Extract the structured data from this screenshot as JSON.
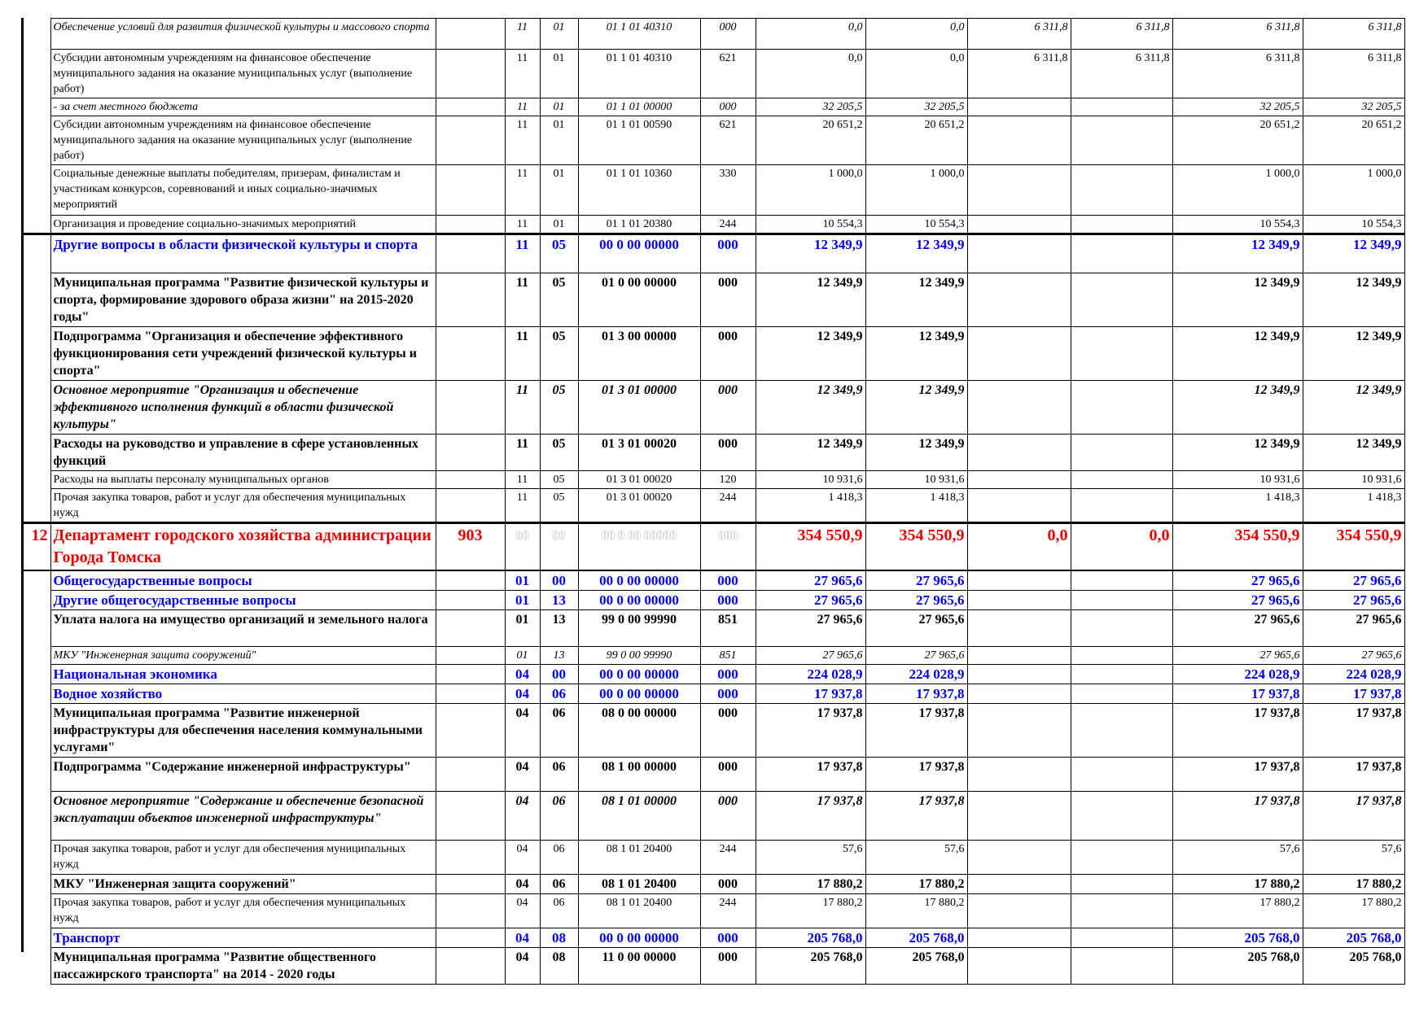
{
  "rows": [
    {
      "style": "it",
      "h": 38,
      "no": "",
      "name": "Обеспечение условий для развития физической культуры и массового спорта",
      "grbs": "",
      "rz": "11",
      "pr": "01",
      "csr": "01 1 01 40310",
      "vr": "000",
      "v": [
        "0,0",
        "0,0",
        "6 311,8",
        "6 311,8",
        "6 311,8",
        "6 311,8"
      ]
    },
    {
      "style": "",
      "h": 60,
      "no": "",
      "name": "  Субсидии автономным учреждениям на финансовое обеспечение муниципального задания на оказание муниципальных услуг (выполнение работ)",
      "grbs": "",
      "rz": "11",
      "pr": "01",
      "csr": "01 1 01 40310",
      "vr": "621",
      "v": [
        "0,0",
        "0,0",
        "6 311,8",
        "6 311,8",
        "6 311,8",
        "6 311,8"
      ]
    },
    {
      "style": "it",
      "h": 20,
      "no": "",
      "name": " - за счет местного бюджета",
      "grbs": "",
      "rz": "11",
      "pr": "01",
      "csr": "01 1 01 00000",
      "vr": "000",
      "v": [
        "32 205,5",
        "32 205,5",
        "",
        "",
        "32 205,5",
        "32 205,5"
      ]
    },
    {
      "style": "",
      "h": 60,
      "no": "",
      "name": "  Субсидии автономным учреждениям на финансовое обеспечение муниципального задания на оказание муниципальных услуг (выполнение работ)",
      "grbs": "",
      "rz": "11",
      "pr": "01",
      "csr": "01 1 01 00590",
      "vr": "621",
      "v": [
        "20 651,2",
        "20 651,2",
        "",
        "",
        "20 651,2",
        "20 651,2"
      ]
    },
    {
      "style": "",
      "h": 62,
      "no": "",
      "name": " Социальные денежные выплаты победителям, призерам, финалистам и участникам конкурсов, соревнований и иных социально-значимых мероприятий",
      "grbs": "",
      "rz": "11",
      "pr": "01",
      "csr": "01 1 01 10360",
      "vr": "330",
      "v": [
        "1 000,0",
        "1 000,0",
        "",
        "",
        "1 000,0",
        "1 000,0"
      ]
    },
    {
      "style": "thick",
      "h": 20,
      "no": "",
      "name": " Организация и проведение социально-значимых мероприятий",
      "grbs": "",
      "rz": "11",
      "pr": "01",
      "csr": "01 1 01 20380",
      "vr": "244",
      "v": [
        "10 554,3",
        "10 554,3",
        "",
        "",
        "10 554,3",
        "10 554,3"
      ]
    },
    {
      "style": "sec",
      "h": 48,
      "no": "",
      "name": "Другие вопросы в области физической культуры и спорта",
      "grbs": "",
      "rz": "11",
      "pr": "05",
      "csr": "00 0 00 00000",
      "vr": "000",
      "v": [
        "12 349,9",
        "12 349,9",
        "",
        "",
        "12 349,9",
        "12 349,9"
      ]
    },
    {
      "style": "b",
      "h": 66,
      "no": "",
      "name": "Муниципальная программа \"Развитие физической культуры и спорта, формирование здорового образа жизни\" на 2015-2020 годы\"",
      "grbs": "",
      "rz": "11",
      "pr": "05",
      "csr": "01 0 00 00000",
      "vr": "000",
      "v": [
        "12 349,9",
        "12 349,9",
        "",
        "",
        "12 349,9",
        "12 349,9"
      ]
    },
    {
      "style": "b",
      "h": 64,
      "no": "",
      "name": "Подпрограмма \"Организация и обеспечение эффективного функционирования сети учреждений физической культуры и спорта\"",
      "grbs": "",
      "rz": "11",
      "pr": "05",
      "csr": "01 3 00 00000",
      "vr": "000",
      "v": [
        "12 349,9",
        "12 349,9",
        "",
        "",
        "12 349,9",
        "12 349,9"
      ]
    },
    {
      "style": "it b",
      "h": 60,
      "no": "",
      "name": " Основное мероприятие \"Организация и обеспечение эффективного исполнения функций в области физической культуры\"",
      "grbs": "",
      "rz": "11",
      "pr": "05",
      "csr": "01 3 01 00000",
      "vr": "000",
      "v": [
        "12 349,9",
        "12 349,9",
        "",
        "",
        "12 349,9",
        "12 349,9"
      ]
    },
    {
      "style": "b",
      "h": 40,
      "no": "",
      "name": "Расходы на руководство и управление в сфере установленных функций",
      "grbs": "",
      "rz": "11",
      "pr": "05",
      "csr": "01 3 01 00020",
      "vr": "000",
      "v": [
        "12 349,9",
        "12 349,9",
        "",
        "",
        "12 349,9",
        "12 349,9"
      ]
    },
    {
      "style": "",
      "h": 20,
      "no": "",
      "name": "Расходы на выплаты персоналу муниципальных органов",
      "grbs": "",
      "rz": "11",
      "pr": "05",
      "csr": "01 3 01 00020",
      "vr": "120",
      "v": [
        "10 931,6",
        "10 931,6",
        "",
        "",
        "10 931,6",
        "10 931,6"
      ]
    },
    {
      "style": "",
      "h": 42,
      "no": "",
      "name": "   Прочая закупка товаров, работ и услуг для обеспечения муниципальных нужд",
      "grbs": "",
      "rz": "11",
      "pr": "05",
      "csr": "01 3 01 00020",
      "vr": "244",
      "v": [
        "1 418,3",
        "1 418,3",
        "",
        "",
        "1 418,3",
        "1 418,3"
      ]
    },
    {
      "style": "dept",
      "h": 52,
      "no": "12",
      "name": "Департамент городского хозяйства администрации Города Томска",
      "grbs": "903",
      "rz": "00",
      "pr": "00",
      "csr": "00 0 00 00000",
      "vr": "000",
      "v": [
        "354 550,9",
        "354 550,9",
        "0,0",
        "0,0",
        "354 550,9",
        "354 550,9"
      ]
    },
    {
      "style": "sec",
      "h": 23,
      "no": "",
      "name": "Общегосударственные вопросы",
      "grbs": "",
      "rz": "01",
      "pr": "00",
      "csr": "00 0 00 00000",
      "vr": "000",
      "v": [
        "27 965,6",
        "27 965,6",
        "",
        "",
        "27 965,6",
        "27 965,6"
      ]
    },
    {
      "style": "sec",
      "h": 22,
      "no": "",
      "name": "Другие общегосударственные вопросы",
      "grbs": "",
      "rz": "01",
      "pr": "13",
      "csr": "00 0 00 00000",
      "vr": "000",
      "v": [
        "27 965,6",
        "27 965,6",
        "",
        "",
        "27 965,6",
        "27 965,6"
      ]
    },
    {
      "style": "b",
      "h": 45,
      "no": "",
      "name": "Уплата налога на имущество организаций и земельного налога",
      "grbs": "",
      "rz": "01",
      "pr": "13",
      "csr": "99 0 00 99990",
      "vr": "851",
      "v": [
        "27 965,6",
        "27 965,6",
        "",
        "",
        "27 965,6",
        "27 965,6"
      ]
    },
    {
      "style": "it",
      "h": 22,
      "no": "",
      "name": "   МКУ \"Инженерная защита сооружений\"",
      "grbs": "",
      "rz": "01",
      "pr": "13",
      "csr": "99 0 00 99990",
      "vr": "851",
      "v": [
        "27 965,6",
        "27 965,6",
        "",
        "",
        "27 965,6",
        "27 965,6"
      ]
    },
    {
      "style": "sec",
      "h": 22,
      "no": "",
      "name": "Национальная экономика",
      "grbs": "",
      "rz": "04",
      "pr": "00",
      "csr": "00 0 00 00000",
      "vr": "000",
      "v": [
        "224 028,9",
        "224 028,9",
        "",
        "",
        "224 028,9",
        "224 028,9"
      ]
    },
    {
      "style": "sec",
      "h": 22,
      "no": "",
      "name": "Водное хозяйство",
      "grbs": "",
      "rz": "04",
      "pr": "06",
      "csr": "00 0 00 00000",
      "vr": "000",
      "v": [
        "17 937,8",
        "17 937,8",
        "",
        "",
        "17 937,8",
        "17 937,8"
      ]
    },
    {
      "style": "b",
      "h": 64,
      "no": "",
      "name": "Муниципальная программа \"Развитие инженерной инфраструктуры для обеспечения населения коммунальными услугами\"",
      "grbs": "",
      "rz": "04",
      "pr": "06",
      "csr": "08 0 00 00000",
      "vr": "000",
      "v": [
        "17 937,8",
        "17 937,8",
        "",
        "",
        "17 937,8",
        "17 937,8"
      ]
    },
    {
      "style": "b",
      "h": 42,
      "no": "",
      "name": "Подпрограмма \"Содержание инженерной инфраструктуры\"",
      "grbs": "",
      "rz": "04",
      "pr": "06",
      "csr": "08 1 00 00000",
      "vr": "000",
      "v": [
        "17 937,8",
        "17 937,8",
        "",
        "",
        "17 937,8",
        "17 937,8"
      ]
    },
    {
      "style": "it b",
      "h": 60,
      "no": "",
      "name": " Основное мероприятие \"Содержание и обеспечение безопасной эксплуатации объектов инженерной инфраструктуры\"",
      "grbs": "",
      "rz": "04",
      "pr": "06",
      "csr": "08 1 01 00000",
      "vr": "000",
      "v": [
        "17 937,8",
        "17 937,8",
        "",
        "",
        "17 937,8",
        "17 937,8"
      ]
    },
    {
      "style": "",
      "h": 42,
      "no": "",
      "name": "Прочая закупка товаров, работ и услуг для обеспечения муниципальных нужд",
      "grbs": "",
      "rz": "04",
      "pr": "06",
      "csr": "08 1 01 20400",
      "vr": "244",
      "v": [
        "57,6",
        "57,6",
        "",
        "",
        "57,6",
        "57,6"
      ]
    },
    {
      "style": "b",
      "h": 20,
      "no": "",
      "name": "МКУ \"Инженерная защита сооружений\"",
      "grbs": "",
      "rz": "04",
      "pr": "06",
      "csr": "08 1 01 20400",
      "vr": "000",
      "v": [
        "17 880,2",
        "17 880,2",
        "",
        "",
        "17 880,2",
        "17 880,2"
      ]
    },
    {
      "style": "",
      "h": 42,
      "no": "",
      "name": "   Прочая закупка товаров, работ и услуг для обеспечения муниципальных нужд",
      "grbs": "",
      "rz": "04",
      "pr": "06",
      "csr": "08 1 01 20400",
      "vr": "244",
      "v": [
        "17 880,2",
        "17 880,2",
        "",
        "",
        "17 880,2",
        "17 880,2"
      ]
    },
    {
      "style": "sec",
      "h": 22,
      "no": "",
      "name": "Транспорт",
      "grbs": "",
      "rz": "04",
      "pr": "08",
      "csr": "00 0 00 00000",
      "vr": "000",
      "v": [
        "205 768,0",
        "205 768,0",
        "",
        "",
        "205 768,0",
        "205 768,0"
      ]
    },
    {
      "style": "b",
      "h": 42,
      "no": "",
      "name": "Муниципальная программа \"Развитие общественного пассажирского транспорта\" на 2014 - 2020 годы",
      "grbs": "",
      "rz": "04",
      "pr": "08",
      "csr": "11 0 00 00000",
      "vr": "000",
      "v": [
        "205 768,0",
        "205 768,0",
        "",
        "",
        "205 768,0",
        "205 768,0"
      ]
    }
  ]
}
